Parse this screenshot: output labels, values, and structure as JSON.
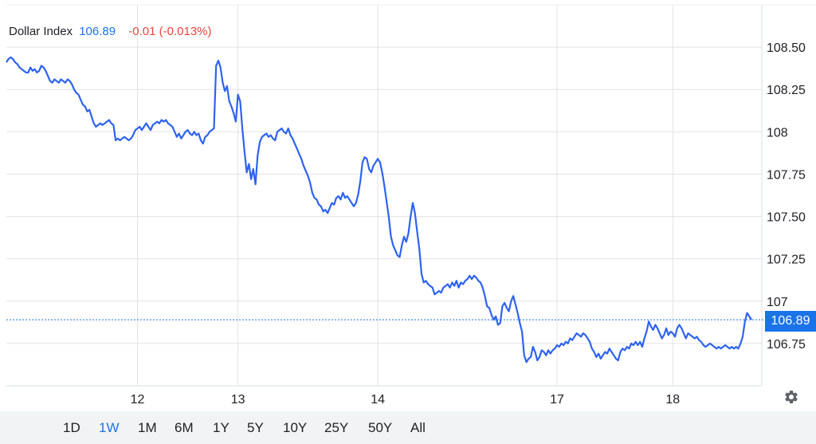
{
  "legend": {
    "name": "Dollar Index",
    "value": "106.89",
    "change": "-0.01 (-0.013%)"
  },
  "price_tag": "106.89",
  "ranges": [
    "1D",
    "1W",
    "1M",
    "6M",
    "1Y",
    "5Y",
    "10Y",
    "25Y",
    "50Y",
    "All"
  ],
  "active_range": "1W",
  "colors": {
    "line": "#2e63f0",
    "accent": "#1a73e8",
    "negative": "#e8443b",
    "grid": "#e3e3e3"
  },
  "icons": {
    "settings": "gear-icon"
  },
  "chart_data": {
    "type": "line",
    "series": [
      {
        "values": [
          108.41,
          108.43,
          108.44,
          108.43,
          108.41,
          108.4,
          108.38,
          108.37,
          108.36,
          108.35,
          108.35,
          108.38,
          108.36,
          108.37,
          108.35,
          108.36,
          108.39,
          108.38,
          108.36,
          108.33,
          108.3,
          108.29,
          108.31,
          108.3,
          108.29,
          108.31,
          108.3,
          108.29,
          108.31,
          108.3,
          108.28,
          108.25,
          108.23,
          108.22,
          108.19,
          108.16,
          108.15,
          108.12,
          108.13,
          108.09,
          108.05,
          108.03,
          108.04,
          108.05,
          108.04,
          108.05,
          108.06,
          108.07,
          108.05,
          108.04,
          107.95,
          107.96,
          107.95,
          107.96,
          107.97,
          107.96,
          107.95,
          107.96,
          107.98,
          108.01,
          108.02,
          108.03,
          108.01,
          108.03,
          108.05,
          108.03,
          108.01,
          108.04,
          108.05,
          108.06,
          108.05,
          108.07,
          108.06,
          108.07,
          108.05,
          108.04,
          108.03,
          108.0,
          107.97,
          107.99,
          107.96,
          107.98,
          108.0,
          108.01,
          107.99,
          107.98,
          108.0,
          107.98,
          107.99,
          107.95,
          107.93,
          107.97,
          107.98,
          108.0,
          108.01,
          108.02,
          108.39,
          108.42,
          108.38,
          108.29,
          108.24,
          108.27,
          108.18,
          108.15,
          108.11,
          108.06,
          108.22,
          108.18,
          108.02,
          107.88,
          107.76,
          107.81,
          107.72,
          107.78,
          107.69,
          107.86,
          107.94,
          107.97,
          107.98,
          107.99,
          107.97,
          107.98,
          107.96,
          107.95,
          108.0,
          108.01,
          108.02,
          108.0,
          107.99,
          108.02,
          107.98,
          107.96,
          107.93,
          107.9,
          107.87,
          107.84,
          107.8,
          107.77,
          107.74,
          107.7,
          107.64,
          107.61,
          107.6,
          107.57,
          107.56,
          107.53,
          107.54,
          107.52,
          107.55,
          107.58,
          107.57,
          107.61,
          107.62,
          107.6,
          107.64,
          107.61,
          107.62,
          107.6,
          107.58,
          107.56,
          107.58,
          107.63,
          107.71,
          107.82,
          107.85,
          107.84,
          107.78,
          107.76,
          107.8,
          107.82,
          107.84,
          107.82,
          107.76,
          107.68,
          107.59,
          107.5,
          107.38,
          107.33,
          107.3,
          107.27,
          107.26,
          107.33,
          107.38,
          107.35,
          107.4,
          107.5,
          107.58,
          107.52,
          107.41,
          107.31,
          107.16,
          107.11,
          107.12,
          107.1,
          107.09,
          107.08,
          107.04,
          107.05,
          107.06,
          107.05,
          107.08,
          107.09,
          107.1,
          107.08,
          107.11,
          107.09,
          107.12,
          107.08,
          107.11,
          107.1,
          107.12,
          107.13,
          107.15,
          107.13,
          107.15,
          107.14,
          107.12,
          107.11,
          107.08,
          107.03,
          106.97,
          106.96,
          106.92,
          106.89,
          106.91,
          106.86,
          106.87,
          106.97,
          106.99,
          106.96,
          106.94,
          107.0,
          107.03,
          106.98,
          106.93,
          106.87,
          106.82,
          106.68,
          106.64,
          106.66,
          106.67,
          106.73,
          106.7,
          106.65,
          106.67,
          106.71,
          106.7,
          106.68,
          106.71,
          106.69,
          106.71,
          106.72,
          106.74,
          106.73,
          106.75,
          106.74,
          106.76,
          106.75,
          106.78,
          106.77,
          106.79,
          106.81,
          106.8,
          106.79,
          106.81,
          106.8,
          106.78,
          106.76,
          106.72,
          106.7,
          106.67,
          106.69,
          106.66,
          106.68,
          106.7,
          106.69,
          106.72,
          106.7,
          106.68,
          106.66,
          106.65,
          106.7,
          106.72,
          106.71,
          106.73,
          106.72,
          106.75,
          106.74,
          106.76,
          106.74,
          106.76,
          106.73,
          106.78,
          106.82,
          106.88,
          106.85,
          106.83,
          106.86,
          106.84,
          106.81,
          106.78,
          106.8,
          106.84,
          106.8,
          106.82,
          106.81,
          106.79,
          106.84,
          106.86,
          106.84,
          106.81,
          106.78,
          106.81,
          106.8,
          106.79,
          106.78,
          106.79,
          106.77,
          106.76,
          106.74,
          106.73,
          106.74,
          106.75,
          106.74,
          106.73,
          106.72,
          106.73,
          106.72,
          106.73,
          106.74,
          106.73,
          106.72,
          106.73,
          106.72,
          106.73,
          106.72,
          106.75,
          106.79,
          106.88,
          106.93,
          106.91,
          106.89
        ]
      }
    ],
    "x_ticks": [
      {
        "label": "12",
        "index": 60
      },
      {
        "label": "13",
        "index": 106
      },
      {
        "label": "14",
        "index": 170
      },
      {
        "label": "17",
        "index": 252
      },
      {
        "label": "18",
        "index": 305
      }
    ],
    "y_ticks": [
      {
        "label": "108.50",
        "value": 108.5
      },
      {
        "label": "108.25",
        "value": 108.25
      },
      {
        "label": "108",
        "value": 108.0
      },
      {
        "label": "107.75",
        "value": 107.75
      },
      {
        "label": "107.50",
        "value": 107.5
      },
      {
        "label": "107.25",
        "value": 107.25
      },
      {
        "label": "107",
        "value": 107.0
      },
      {
        "label": "106.75",
        "value": 106.75
      }
    ],
    "ylim": [
      106.5,
      108.75
    ],
    "last_value": 106.89,
    "grid": true
  }
}
